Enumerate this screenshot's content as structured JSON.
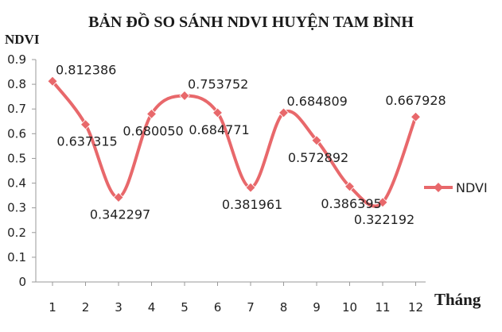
{
  "chart_data": {
    "type": "line",
    "title": "BẢN ĐỒ SO SÁNH NDVI HUYỆN TAM BÌNH",
    "xlabel": "Tháng",
    "ylabel": "NDVI",
    "categories": [
      "1",
      "2",
      "3",
      "4",
      "5",
      "6",
      "7",
      "8",
      "9",
      "10",
      "11",
      "12"
    ],
    "series": [
      {
        "name": "NDVI",
        "values": [
          0.812386,
          0.637315,
          0.342297,
          0.68005,
          0.753752,
          0.684771,
          0.381961,
          0.684809,
          0.572892,
          0.386395,
          0.322192,
          0.667928
        ],
        "labels": [
          "0.812386",
          "0.637315",
          "0.342297",
          "0.680050",
          "0.753752",
          "0.684771",
          "0.381961",
          "0.684809",
          "0.572892",
          "0.386395",
          "0.322192",
          "0.667928"
        ],
        "color": "#e8686b",
        "smooth": true,
        "marker": "diamond"
      }
    ],
    "ylim": [
      0,
      0.9
    ],
    "yticks": [
      "0",
      "0.1",
      "0.2",
      "0.3",
      "0.4",
      "0.5",
      "0.6",
      "0.7",
      "0.8",
      "0.9"
    ],
    "grid": false,
    "legend": "right"
  }
}
